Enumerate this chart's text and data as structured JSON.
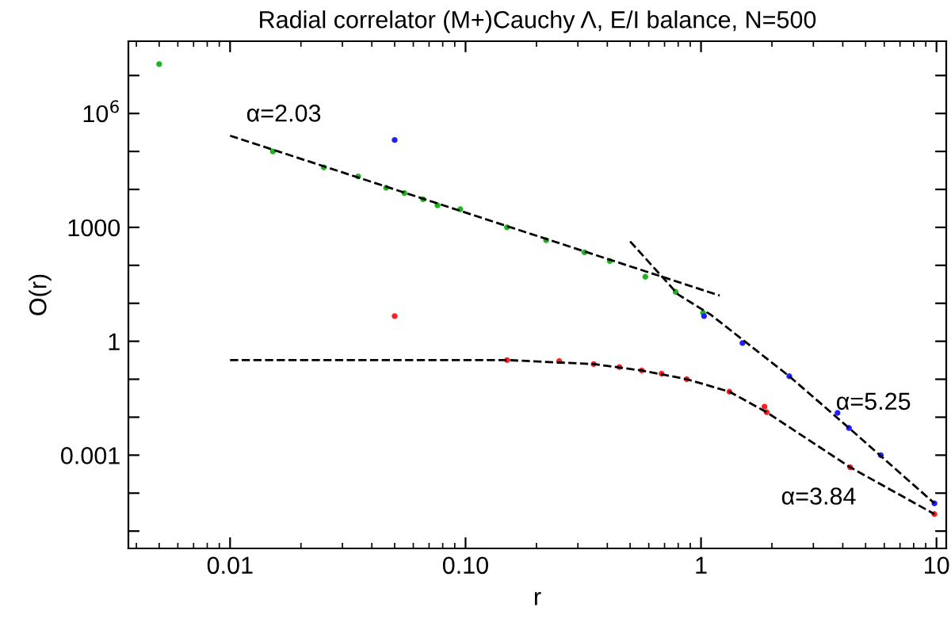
{
  "chart_data": {
    "type": "scatter",
    "title": "Radial correlator (M+)Cauchy Λ, E/I balance, N=500",
    "xlabel": "r",
    "ylabel": "O(r)",
    "log": "xy",
    "grid": false,
    "xlim": [
      0.0037,
      11
    ],
    "xticks": [
      0.01,
      {
        "value": 0.1,
        "label": "0.10"
      },
      1,
      10
    ],
    "ylim": [
      3.5e-06,
      80000000.0
    ],
    "yticks": [
      {
        "value": 1e-05,
        "label": null
      },
      {
        "value": 0.0001,
        "label": null
      },
      0.001,
      {
        "value": 0.01,
        "label": null
      },
      {
        "value": 0.1,
        "label": null
      },
      1,
      {
        "value": 10,
        "label": null
      },
      {
        "value": 100,
        "label": null
      },
      1000,
      {
        "value": 10000.0,
        "label": null
      },
      {
        "value": 100000.0,
        "label": null
      },
      {
        "value": 1000000.0,
        "label": "10$^{6}$"
      },
      {
        "value": 10000000.0,
        "label": null
      }
    ],
    "series": [
      {
        "marker": "circle",
        "color": "#1fb31f",
        "x": [
          0.005,
          0.0152,
          0.025,
          0.035,
          0.046,
          0.055,
          0.066,
          0.076,
          0.095,
          0.15,
          0.22,
          0.32,
          0.41,
          0.58,
          0.78,
          1.02
        ],
        "values": [
          20000000.0,
          100000.0,
          38000.0,
          22000.0,
          11000.0,
          8000.0,
          5500.0,
          3800.0,
          3000.0,
          1000,
          460,
          220,
          130,
          50,
          20,
          5.6
        ]
      },
      {
        "marker": "circle",
        "color": "#1f1fff",
        "x": [
          0.05,
          1.03,
          1.5,
          2.37,
          3.8,
          4.25,
          5.8,
          9.8
        ],
        "values": [
          200000.0,
          4.6,
          0.9,
          0.12,
          0.013,
          0.0052,
          0.001,
          5.4e-05
        ]
      },
      {
        "marker": "circle",
        "color": "#ff1f1f",
        "x": [
          0.05,
          0.15,
          0.25,
          0.35,
          0.45,
          0.56,
          0.68,
          0.87,
          1.32,
          1.86,
          1.9,
          4.3,
          9.8
        ],
        "values": [
          4.6,
          0.32,
          0.3,
          0.25,
          0.21,
          0.17,
          0.14,
          0.1,
          0.047,
          0.019,
          0.0135,
          0.00048,
          2.8e-05
        ]
      },
      {
        "type": "line",
        "line_style": "dashed",
        "color": "#000000",
        "x": [
          0.01,
          1.2
        ],
        "values": [
          260000.0,
          16
        ]
      },
      {
        "type": "line",
        "line_style": "dashed",
        "color": "#000000",
        "x": [
          0.5,
          0.8,
          1.1,
          2.37,
          4.25,
          9.8
        ],
        "values": [
          427,
          17,
          5,
          0.12,
          0.0052,
          5.4e-05
        ]
      },
      {
        "type": "line",
        "line_style": "dashed",
        "color": "#000000",
        "x": [
          0.01,
          0.15,
          0.35,
          0.56,
          0.87,
          1.32,
          1.9,
          4.3,
          9.8
        ],
        "values": [
          0.32,
          0.32,
          0.25,
          0.17,
          0.1,
          0.047,
          0.0135,
          0.00048,
          2.8e-05
        ]
      }
    ],
    "annotations": [
      "α=2.03",
      "α=5.25",
      "α=3.84"
    ]
  }
}
